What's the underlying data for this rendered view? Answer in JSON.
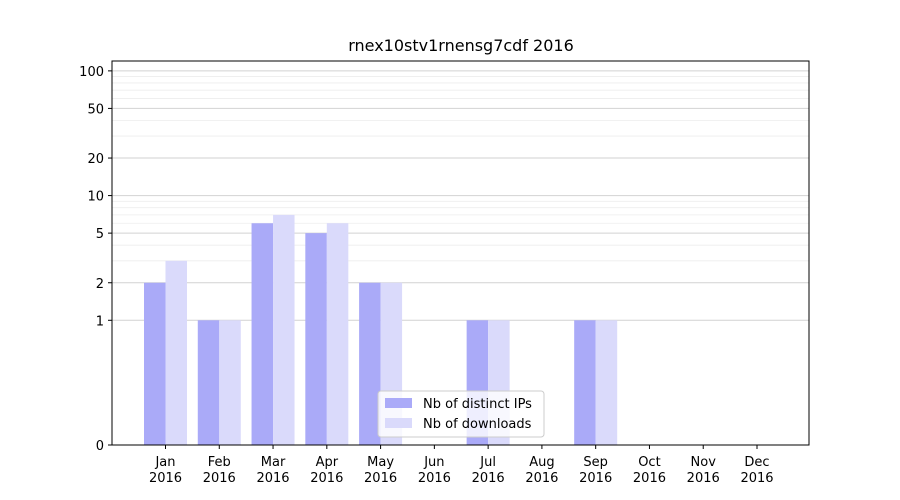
{
  "chart_data": {
    "type": "bar",
    "title": "rnex10stv1rnensg7cdf 2016",
    "xlabel": "",
    "ylabel": "",
    "yscale": "symlog",
    "ylim": [
      0,
      120
    ],
    "y_ticks": [
      0,
      1,
      2,
      5,
      10,
      20,
      50,
      100
    ],
    "grid": "horizontal",
    "legend_position": "bottom-center",
    "categories": [
      [
        "Jan",
        "2016"
      ],
      [
        "Feb",
        "2016"
      ],
      [
        "Mar",
        "2016"
      ],
      [
        "Apr",
        "2016"
      ],
      [
        "May",
        "2016"
      ],
      [
        "Jun",
        "2016"
      ],
      [
        "Jul",
        "2016"
      ],
      [
        "Aug",
        "2016"
      ],
      [
        "Sep",
        "2016"
      ],
      [
        "Oct",
        "2016"
      ],
      [
        "Nov",
        "2016"
      ],
      [
        "Dec",
        "2016"
      ]
    ],
    "series": [
      {
        "name": "Nb of distinct IPs",
        "color": "#aaaaf8",
        "values": [
          2,
          1,
          6,
          5,
          2,
          0,
          1,
          0,
          1,
          0,
          0,
          0
        ]
      },
      {
        "name": "Nb of downloads",
        "color": "#dadafb",
        "values": [
          3,
          1,
          7,
          6,
          2,
          0,
          1,
          0,
          1,
          0,
          0,
          0
        ]
      }
    ]
  }
}
